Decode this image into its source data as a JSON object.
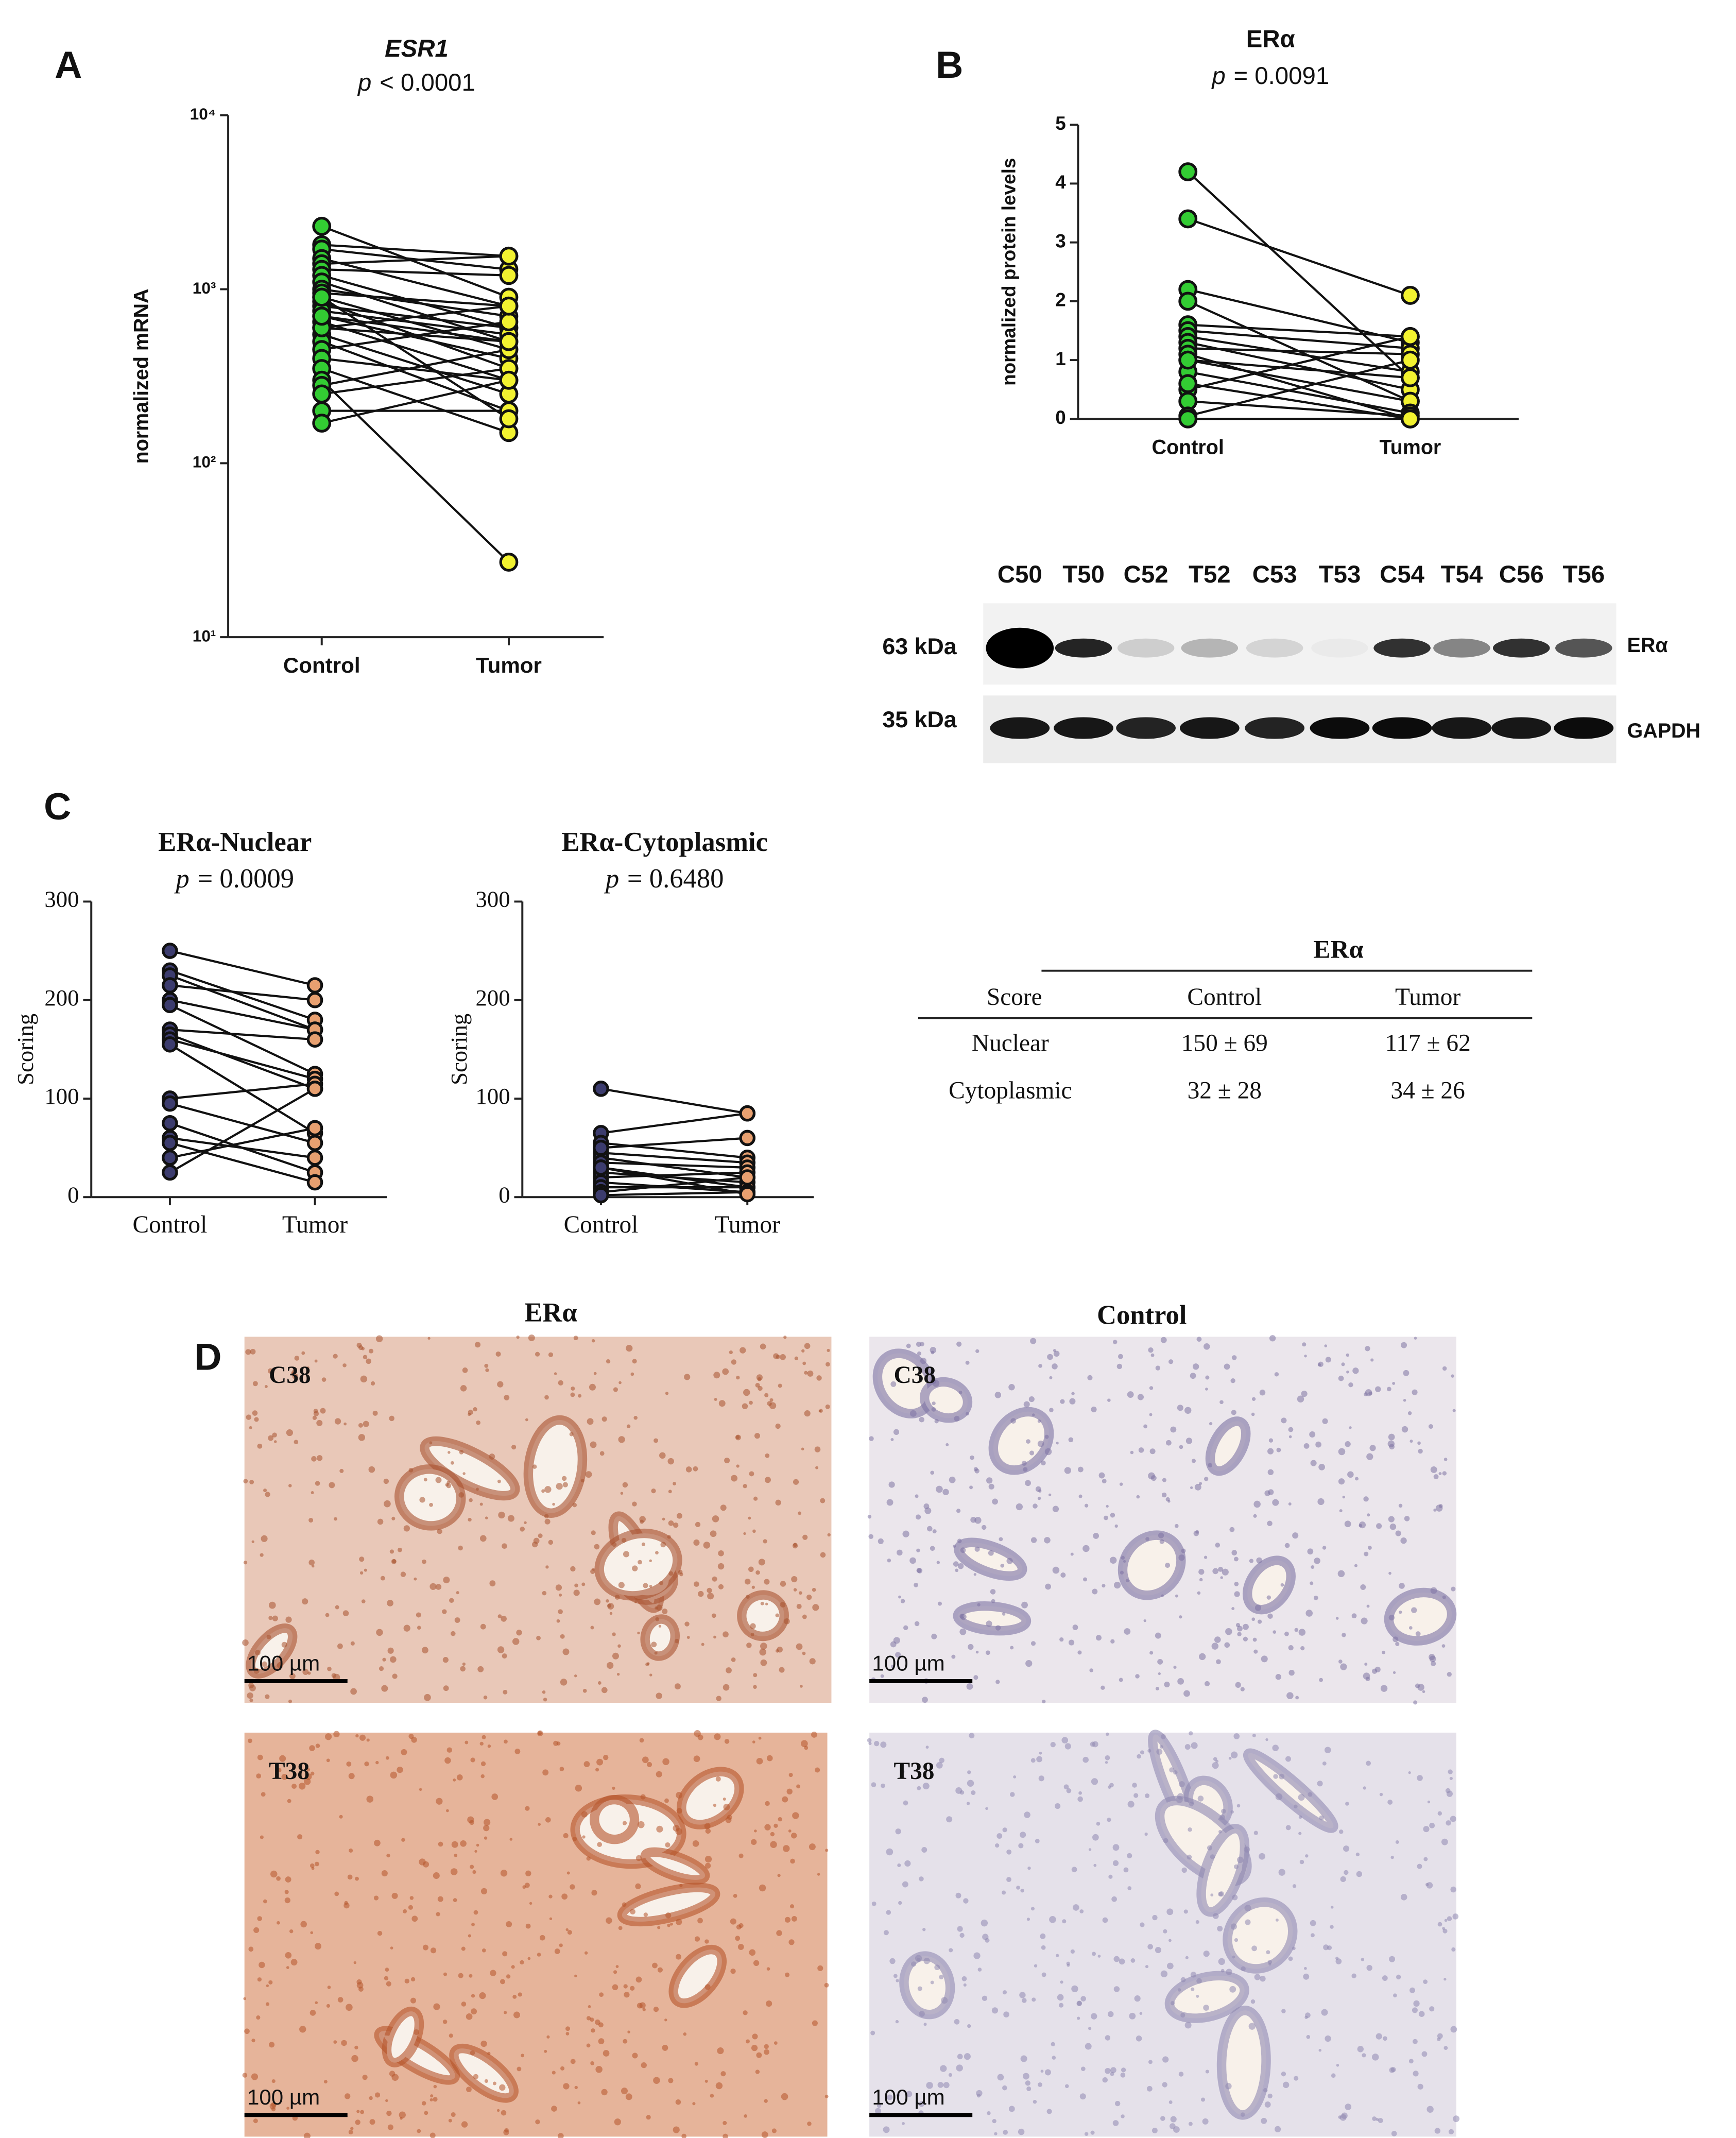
{
  "panels": [
    "A",
    "B",
    "C",
    "D"
  ],
  "chart_data": [
    {
      "type": "paired",
      "title": "ESR1",
      "p": "p",
      "p_text": "< 0.0001",
      "ylabel": "normalized mRNA",
      "categories": [
        "Control",
        "Tumor"
      ],
      "colors": [
        "#33cc33",
        "#f2f230"
      ],
      "log": true,
      "ylim": [
        10,
        10000
      ],
      "yticks": [
        {
          "value": 10,
          "label": "10¹"
        },
        {
          "value": 100,
          "label": "10²"
        },
        {
          "value": 1000,
          "label": "10³"
        },
        {
          "value": 10000,
          "label": "10⁴"
        }
      ],
      "values": [
        [
          2300,
          900
        ],
        [
          1800,
          1550
        ],
        [
          1700,
          1300
        ],
        [
          1500,
          800
        ],
        [
          1400,
          1550
        ],
        [
          1300,
          1200
        ],
        [
          1200,
          600
        ],
        [
          1100,
          500
        ],
        [
          1000,
          700
        ],
        [
          950,
          800
        ],
        [
          900,
          450
        ],
        [
          850,
          350
        ],
        [
          800,
          600
        ],
        [
          750,
          550
        ],
        [
          700,
          400
        ],
        [
          650,
          300
        ],
        [
          600,
          500
        ],
        [
          550,
          250
        ],
        [
          500,
          200
        ],
        [
          450,
          650
        ],
        [
          400,
          300
        ],
        [
          350,
          150
        ],
        [
          300,
          27
        ],
        [
          280,
          450
        ],
        [
          250,
          350
        ],
        [
          200,
          200
        ],
        [
          170,
          300
        ],
        [
          600,
          800
        ],
        [
          700,
          500
        ],
        [
          900,
          180
        ]
      ]
    },
    {
      "type": "paired",
      "title": "ERα",
      "p": "p",
      "p_text": "= 0.0091",
      "ylabel": "normalized protein levels",
      "categories": [
        "Control",
        "Tumor"
      ],
      "colors": [
        "#33cc33",
        "#f2f230"
      ],
      "log": false,
      "ylim": [
        0,
        5
      ],
      "yticks": [
        0,
        1,
        2,
        3,
        4,
        5
      ],
      "values": [
        [
          4.2,
          0.7
        ],
        [
          3.4,
          2.1
        ],
        [
          2.2,
          1.3
        ],
        [
          2.0,
          0.3
        ],
        [
          1.6,
          1.4
        ],
        [
          1.5,
          1.2
        ],
        [
          1.4,
          0.8
        ],
        [
          1.3,
          0.5
        ],
        [
          1.2,
          1.1
        ],
        [
          1.1,
          0.0
        ],
        [
          1.0,
          0.3
        ],
        [
          0.8,
          0.1
        ],
        [
          0.5,
          1.4
        ],
        [
          0.3,
          0.05
        ],
        [
          0.05,
          1.0
        ],
        [
          0.0,
          0.0
        ],
        [
          1.0,
          0.7
        ],
        [
          0.6,
          0.0
        ]
      ]
    },
    {
      "type": "paired",
      "title": "ERα-Nuclear",
      "p": "p",
      "p_text": "= 0.0009",
      "ylabel": "Scoring",
      "categories": [
        "Control",
        "Tumor"
      ],
      "colors": [
        "#3c3c6e",
        "#e8a070"
      ],
      "log": false,
      "ylim": [
        0,
        300
      ],
      "yticks": [
        0,
        100,
        200,
        300
      ],
      "values": [
        [
          250,
          215
        ],
        [
          230,
          180
        ],
        [
          225,
          170
        ],
        [
          215,
          200
        ],
        [
          200,
          170
        ],
        [
          195,
          125
        ],
        [
          170,
          160
        ],
        [
          165,
          110
        ],
        [
          160,
          120
        ],
        [
          155,
          65
        ],
        [
          100,
          115
        ],
        [
          95,
          55
        ],
        [
          75,
          25
        ],
        [
          60,
          40
        ],
        [
          55,
          15
        ],
        [
          40,
          70
        ],
        [
          25,
          110
        ]
      ]
    },
    {
      "type": "paired",
      "title": "ERα-Cytoplasmic",
      "p": "p",
      "p_text": "= 0.6480",
      "ylabel": "Scoring",
      "categories": [
        "Control",
        "Tumor"
      ],
      "colors": [
        "#3c3c6e",
        "#e8a070"
      ],
      "log": false,
      "ylim": [
        0,
        300
      ],
      "yticks": [
        0,
        100,
        200,
        300
      ],
      "values": [
        [
          110,
          85
        ],
        [
          65,
          85
        ],
        [
          55,
          40
        ],
        [
          45,
          35
        ],
        [
          40,
          20
        ],
        [
          35,
          30
        ],
        [
          30,
          10
        ],
        [
          25,
          15
        ],
        [
          20,
          25
        ],
        [
          15,
          5
        ],
        [
          10,
          10
        ],
        [
          5,
          20
        ],
        [
          2,
          5
        ],
        [
          50,
          60
        ],
        [
          30,
          3
        ]
      ]
    }
  ],
  "blot": {
    "lanes": [
      "C50",
      "T50",
      "C52",
      "T52",
      "C53",
      "T53",
      "C54",
      "T54",
      "C56",
      "T56"
    ],
    "markers": [
      "63 kDa",
      "35 kDa"
    ],
    "proteins": [
      "ERα",
      "GAPDH"
    ]
  },
  "table": {
    "title": "ERα",
    "header": [
      "Score",
      "Control",
      "Tumor"
    ],
    "rows": [
      [
        "Nuclear",
        "150 ± 69",
        "117 ± 62"
      ],
      [
        "Cytoplasmic",
        "32 ± 28",
        "34 ± 26"
      ]
    ]
  },
  "histology": {
    "columns": [
      "ERα",
      "Control"
    ],
    "samples": [
      "C38",
      "C38",
      "T38",
      "T38"
    ],
    "scale": "100 µm"
  }
}
